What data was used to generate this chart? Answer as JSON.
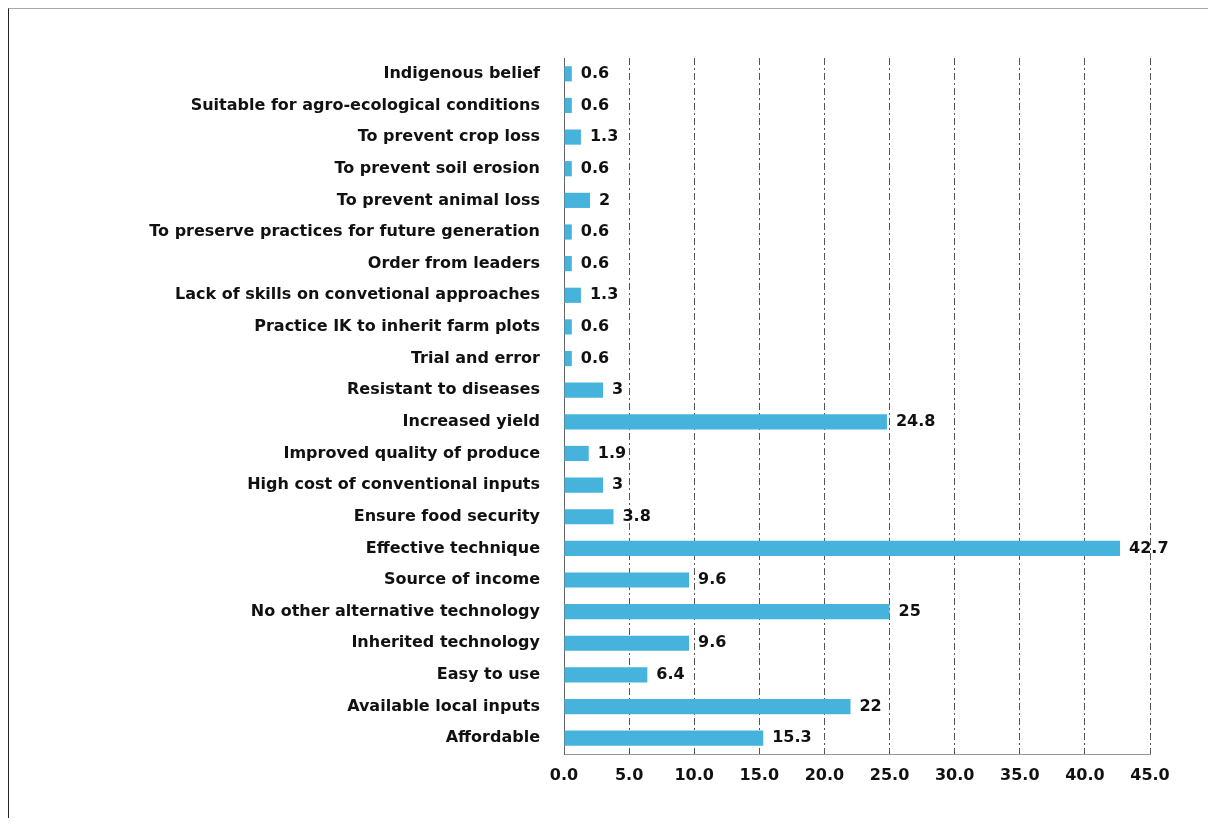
{
  "chart_data": {
    "type": "bar",
    "orientation": "horizontal",
    "categories": [
      "Indigenous belief",
      "Suitable for agro-ecological conditions",
      "To prevent crop loss",
      "To prevent soil erosion",
      "To prevent animal loss",
      "To preserve practices for future generation",
      "Order from leaders",
      "Lack of skills on convetional approaches",
      "Practice IK to inherit farm plots",
      "Trial and error",
      "Resistant to diseases",
      "Increased yield",
      "Improved quality of produce",
      "High cost of conventional inputs",
      "Ensure food security",
      "Effective technique",
      "Source of income",
      "No other alternative technology",
      "Inherited technology",
      "Easy to use",
      "Available local inputs",
      "Affordable"
    ],
    "values": [
      0.6,
      0.6,
      1.3,
      0.6,
      2,
      0.6,
      0.6,
      1.3,
      0.6,
      0.6,
      3,
      24.8,
      1.9,
      3,
      3.8,
      42.7,
      9.6,
      25,
      9.6,
      6.4,
      22,
      15.3
    ],
    "color": "#45b3dc",
    "xlim": [
      0,
      45
    ],
    "xticks": [
      {
        "value": 0,
        "label": "0.0"
      },
      {
        "value": 5,
        "label": "5.0"
      },
      {
        "value": 10,
        "label": "10.0"
      },
      {
        "value": 15,
        "label": "15.0"
      },
      {
        "value": 20,
        "label": "20.0"
      },
      {
        "value": 25,
        "label": "25.0"
      },
      {
        "value": 30,
        "label": "30.0"
      },
      {
        "value": 35,
        "label": "35.0"
      },
      {
        "value": 40,
        "label": "40.0"
      },
      {
        "value": 45,
        "label": "45.0"
      }
    ],
    "grid": "x",
    "data_labels": true
  }
}
